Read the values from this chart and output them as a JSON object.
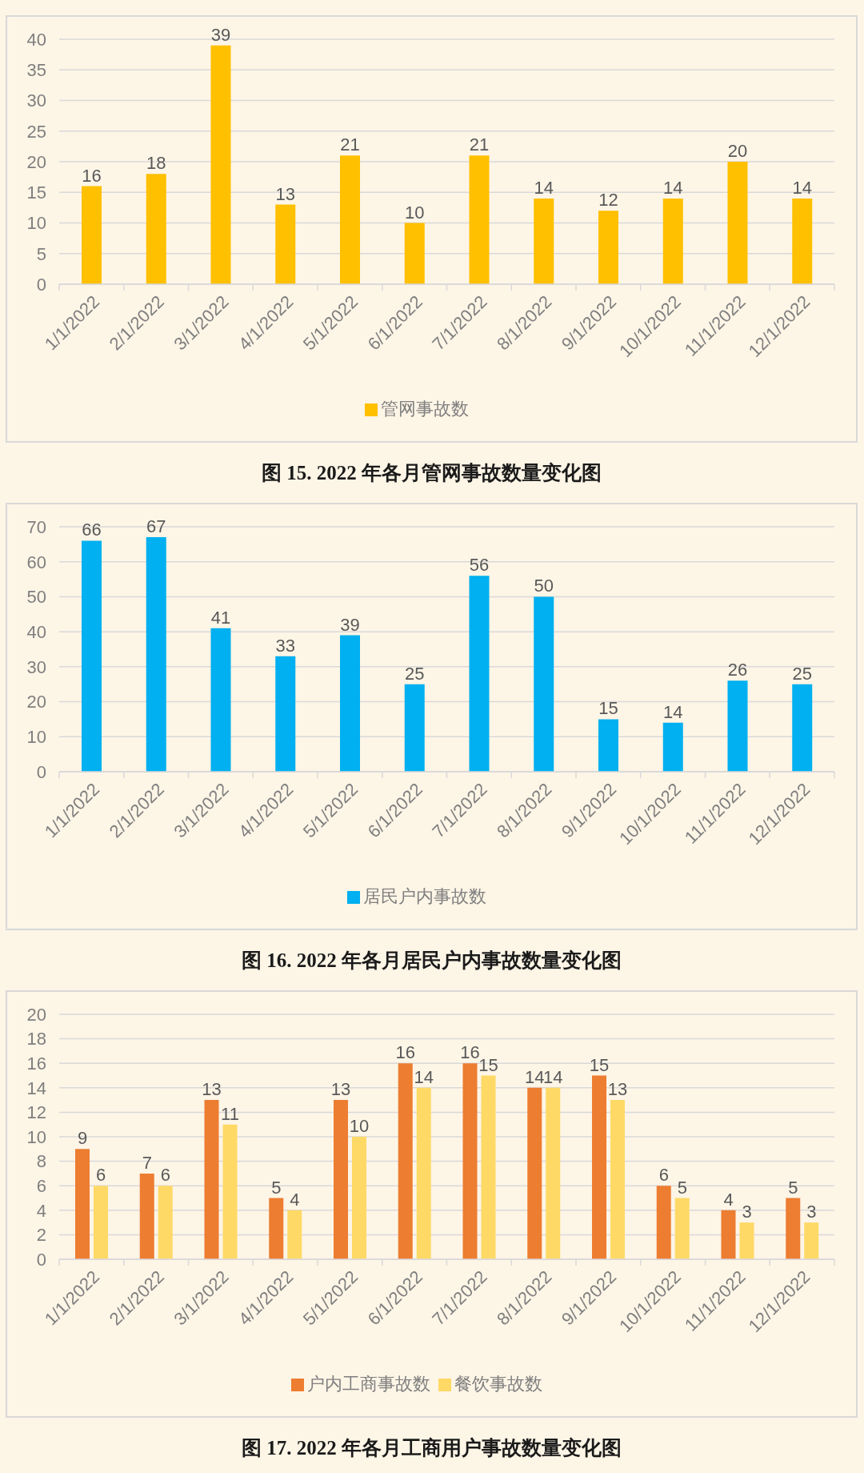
{
  "chart_data": [
    {
      "type": "bar",
      "categories": [
        "1/1/2022",
        "2/1/2022",
        "3/1/2022",
        "4/1/2022",
        "5/1/2022",
        "6/1/2022",
        "7/1/2022",
        "8/1/2022",
        "9/1/2022",
        "10/1/2022",
        "11/1/2022",
        "12/1/2022"
      ],
      "series": [
        {
          "name": "管网事故数",
          "color": "#ffc000",
          "values": [
            16,
            18,
            39,
            13,
            21,
            10,
            21,
            14,
            12,
            14,
            20,
            14
          ]
        }
      ],
      "ylim": [
        0,
        40
      ],
      "yticks": [
        0,
        5,
        10,
        15,
        20,
        25,
        30,
        35,
        40
      ],
      "grid": "y",
      "legend": "bottom",
      "data_labels": true,
      "annotations": [
        "图 15. 2022 年各月管网事故数量变化图"
      ]
    },
    {
      "type": "bar",
      "categories": [
        "1/1/2022",
        "2/1/2022",
        "3/1/2022",
        "4/1/2022",
        "5/1/2022",
        "6/1/2022",
        "7/1/2022",
        "8/1/2022",
        "9/1/2022",
        "10/1/2022",
        "11/1/2022",
        "12/1/2022"
      ],
      "series": [
        {
          "name": "居民户内事故数",
          "color": "#00b0f0",
          "values": [
            66,
            67,
            41,
            33,
            39,
            25,
            56,
            50,
            15,
            14,
            26,
            25
          ]
        }
      ],
      "ylim": [
        0,
        70
      ],
      "yticks": [
        0,
        10,
        20,
        30,
        40,
        50,
        60,
        70
      ],
      "grid": "y",
      "legend": "bottom",
      "data_labels": true,
      "annotations": [
        "图 16. 2022 年各月居民户内事故数量变化图"
      ]
    },
    {
      "type": "bar",
      "categories": [
        "1/1/2022",
        "2/1/2022",
        "3/1/2022",
        "4/1/2022",
        "5/1/2022",
        "6/1/2022",
        "7/1/2022",
        "8/1/2022",
        "9/1/2022",
        "10/1/2022",
        "11/1/2022",
        "12/1/2022"
      ],
      "series": [
        {
          "name": "户内工商事故数",
          "color": "#ed7d31",
          "values": [
            9,
            7,
            13,
            5,
            13,
            16,
            16,
            14,
            15,
            6,
            4,
            5
          ]
        },
        {
          "name": "餐饮事故数",
          "color": "#ffd966",
          "values": [
            6,
            6,
            11,
            4,
            10,
            14,
            15,
            14,
            13,
            5,
            3,
            3
          ]
        }
      ],
      "ylim": [
        0,
        20
      ],
      "yticks": [
        0,
        2,
        4,
        6,
        8,
        10,
        12,
        14,
        16,
        18,
        20
      ],
      "grid": "y",
      "legend": "bottom",
      "data_labels": true,
      "annotations": [
        "图 17. 2022 年各月工商用户事故数量变化图"
      ]
    }
  ]
}
